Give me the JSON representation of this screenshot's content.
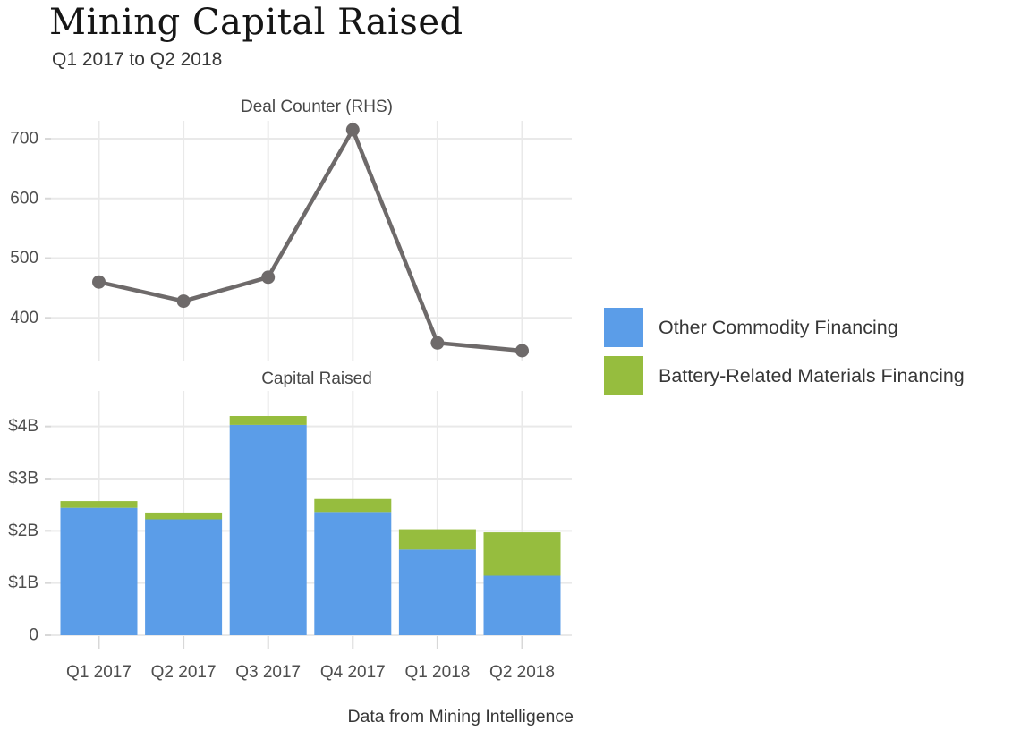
{
  "page": {
    "title": "Mining Capital Raised",
    "subtitle": "Q1 2017 to Q2 2018",
    "footer": "Data from Mining Intelligence"
  },
  "colors": {
    "blue": "#5b9de8",
    "green": "#96bd3e",
    "line": "#6e6a6a",
    "grid": "#e9e9e9",
    "tick": "#d8d8d8"
  },
  "legend": {
    "items": [
      {
        "label": "Other Commodity Financing",
        "color_key": "blue"
      },
      {
        "label": "Battery-Related Materials Financing",
        "color_key": "green"
      }
    ]
  },
  "chart_data": [
    {
      "type": "line",
      "title": "Deal Counter (RHS)",
      "categories": [
        "Q1 2017",
        "Q2 2017",
        "Q3 2017",
        "Q4 2017",
        "Q1 2018",
        "Q2 2018"
      ],
      "values": [
        460,
        428,
        468,
        715,
        358,
        345
      ],
      "yticks": [
        400,
        500,
        600,
        700
      ],
      "ylim": [
        327,
        730
      ],
      "grid": true,
      "legend_position": "right",
      "x_tick_labels_shown": false
    },
    {
      "type": "bar",
      "stacked": true,
      "title": "Capital Raised",
      "categories": [
        "Q1 2017",
        "Q2 2017",
        "Q3 2017",
        "Q4 2017",
        "Q1 2018",
        "Q2 2018"
      ],
      "series": [
        {
          "name": "Other Commodity Financing",
          "color_key": "blue",
          "values": [
            2.44,
            2.22,
            4.03,
            2.36,
            1.64,
            1.14
          ]
        },
        {
          "name": "Battery-Related Materials Financing",
          "color_key": "green",
          "values": [
            0.13,
            0.13,
            0.17,
            0.25,
            0.39,
            0.83
          ]
        }
      ],
      "totals": [
        2.57,
        2.35,
        4.2,
        2.61,
        2.03,
        1.97
      ],
      "yticks": [
        0,
        1,
        2,
        3,
        4
      ],
      "ytick_labels": [
        "0",
        "$1B",
        "$2B",
        "$3B",
        "$4B"
      ],
      "ylim": [
        0,
        4.68
      ],
      "unit": "billions of dollars",
      "grid": true
    }
  ]
}
